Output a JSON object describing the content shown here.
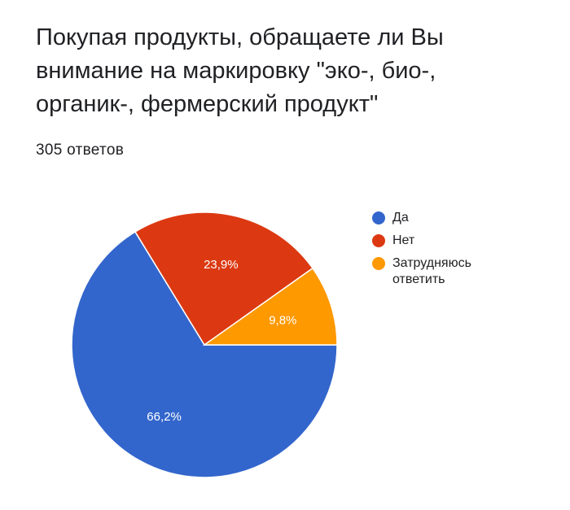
{
  "question": {
    "title": "Покупая продукты, обращаете ли Вы\nвнимание на маркировку \"эко-, био-,\nорганик-, фермерский продукт\"",
    "response_count": "305 ответов"
  },
  "chart_data": {
    "type": "pie",
    "title": "Покупая продукты, обращаете ли Вы внимание на маркировку \"эко-, био-, органик-, фермерский продукт\"",
    "slices": [
      {
        "label": "Да",
        "value": 66.2,
        "display": "66,2%",
        "color": "#3366cc"
      },
      {
        "label": "Нет",
        "value": 23.9,
        "display": "23,9%",
        "color": "#dc3912"
      },
      {
        "label": "Затрудняюсь ответить",
        "value": 9.8,
        "display": "9,8%",
        "color": "#ff9900"
      }
    ],
    "legend_position": "right"
  }
}
